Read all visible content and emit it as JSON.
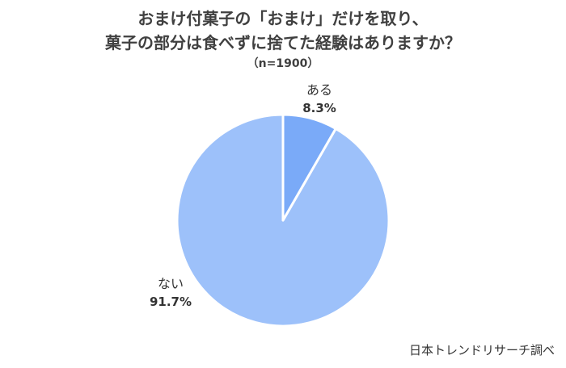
{
  "chart_data": {
    "type": "pie",
    "title_lines": [
      "おまけ付菓子の「おまけ」だけを取り、",
      "菓子の部分は食べずに捨てた経験はありますか？"
    ],
    "subtitle": "（n=1900）",
    "slices": [
      {
        "label": "ある",
        "value": 8.3,
        "value_text": "8.3%",
        "color": "#7aaaf8"
      },
      {
        "label": "ない",
        "value": 91.7,
        "value_text": "91.7%",
        "color": "#9dc1fa"
      }
    ],
    "start_angle_deg": 0,
    "direction": "clockwise"
  },
  "source": "日本トレンドリサーチ調べ"
}
